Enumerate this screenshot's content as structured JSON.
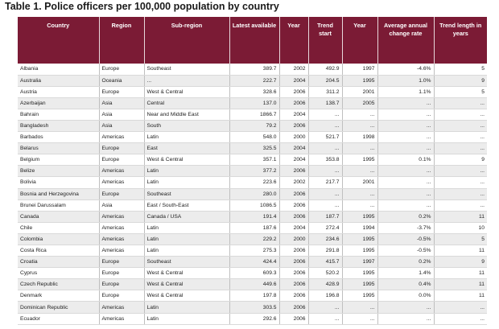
{
  "title": "Table 1. Police officers per 100,000 population by country",
  "columns": [
    "Country",
    "Region",
    "Sub-region",
    "Latest available",
    "Year",
    "Trend start",
    "Year",
    "Average annual change rate",
    "Trend length in years"
  ],
  "rows": [
    [
      "Albania",
      "Europe",
      "Southeast",
      "389.7",
      "2002",
      "492.9",
      "1997",
      "-4.6%",
      "5"
    ],
    [
      "Australia",
      "Oceania",
      "...",
      "222.7",
      "2004",
      "204.5",
      "1995",
      "1.0%",
      "9"
    ],
    [
      "Austria",
      "Europe",
      "West & Central",
      "328.6",
      "2006",
      "311.2",
      "2001",
      "1.1%",
      "5"
    ],
    [
      "Azerbaijan",
      "Asia",
      "Central",
      "137.0",
      "2006",
      "138.7",
      "2005",
      "...",
      "..."
    ],
    [
      "Bahrain",
      "Asia",
      "Near and Middle East",
      "1866.7",
      "2004",
      "...",
      "...",
      "...",
      "..."
    ],
    [
      "Bangladesh",
      "Asia",
      "South",
      "79.2",
      "2006",
      "...",
      "...",
      "...",
      "..."
    ],
    [
      "Barbados",
      "Americas",
      "Latin",
      "548.0",
      "2000",
      "521.7",
      "1998",
      "...",
      "..."
    ],
    [
      "Belarus",
      "Europe",
      "East",
      "325.5",
      "2004",
      "...",
      "...",
      "...",
      "..."
    ],
    [
      "Belgium",
      "Europe",
      "West & Central",
      "357.1",
      "2004",
      "353.8",
      "1995",
      "0.1%",
      "9"
    ],
    [
      "Belize",
      "Americas",
      "Latin",
      "377.2",
      "2006",
      "...",
      "...",
      "...",
      "..."
    ],
    [
      "Bolivia",
      "Americas",
      "Latin",
      "223.6",
      "2002",
      "217.7",
      "2001",
      "...",
      "..."
    ],
    [
      "Bosnia and Herzegovina",
      "Europe",
      "Southeast",
      "280.0",
      "2006",
      "...",
      "...",
      "...",
      "..."
    ],
    [
      "Brunei Darussalam",
      "Asia",
      "East / South-East",
      "1086.5",
      "2006",
      "...",
      "...",
      "...",
      "..."
    ],
    [
      "Canada",
      "Americas",
      "Canada / USA",
      "191.4",
      "2006",
      "187.7",
      "1995",
      "0.2%",
      "11"
    ],
    [
      "Chile",
      "Americas",
      "Latin",
      "187.6",
      "2004",
      "272.4",
      "1994",
      "-3.7%",
      "10"
    ],
    [
      "Colombia",
      "Americas",
      "Latin",
      "229.2",
      "2000",
      "234.6",
      "1995",
      "-0.5%",
      "5"
    ],
    [
      "Costa Rica",
      "Americas",
      "Latin",
      "275.3",
      "2006",
      "291.8",
      "1995",
      "-0.5%",
      "11"
    ],
    [
      "Croatia",
      "Europe",
      "Southeast",
      "424.4",
      "2006",
      "415.7",
      "1997",
      "0.2%",
      "9"
    ],
    [
      "Cyprus",
      "Europe",
      "West & Central",
      "609.3",
      "2006",
      "520.2",
      "1995",
      "1.4%",
      "11"
    ],
    [
      "Czech Republic",
      "Europe",
      "West & Central",
      "449.6",
      "2006",
      "428.9",
      "1995",
      "0.4%",
      "11"
    ],
    [
      "Denmark",
      "Europe",
      "West & Central",
      "197.8",
      "2006",
      "196.8",
      "1995",
      "0.0%",
      "11"
    ],
    [
      "Dominican Republic",
      "Americas",
      "Latin",
      "303.5",
      "2006",
      "...",
      "...",
      "...",
      "..."
    ],
    [
      "Ecuador",
      "Americas",
      "Latin",
      "292.6",
      "2006",
      "...",
      "...",
      "...",
      "..."
    ]
  ]
}
